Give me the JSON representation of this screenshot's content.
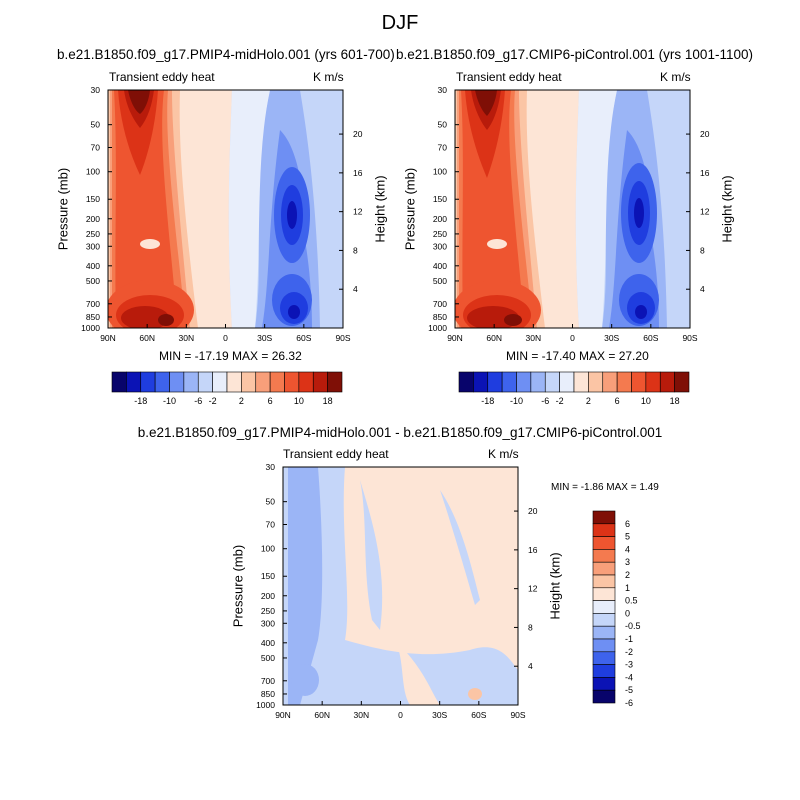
{
  "page": {
    "title": "DJF"
  },
  "colors": {
    "main": [
      "#08046b",
      "#0b13b5",
      "#1f3ddf",
      "#3e63ec",
      "#6e8ff3",
      "#9bb5f6",
      "#c5d6f9",
      "#e8eefb",
      "#fde5d6",
      "#fbc5a5",
      "#f89f7a",
      "#f47a4f",
      "#ee5530",
      "#dc3317",
      "#b81b0b",
      "#7f0f06"
    ],
    "diff": [
      "#08046b",
      "#0b13b5",
      "#1f3ddf",
      "#3e63ec",
      "#6e8ff3",
      "#9bb5f6",
      "#c5d6f9",
      "#e8eefb",
      "#fde5d6",
      "#fbc5a5",
      "#f89f7a",
      "#f47a4f",
      "#ee5530",
      "#dc3317",
      "#7f0f06"
    ]
  },
  "chart_data": [
    {
      "type": "contour",
      "panel": "left",
      "title": "b.e21.B1850.f09_g17.PMIP4-midHolo.001 (yrs 601-700)",
      "left_label": "Transient eddy heat",
      "right_label": "K m/s",
      "ylabel": "Pressure (mb)",
      "y2label": "Height (km)",
      "x_ticks": [
        "90N",
        "60N",
        "30N",
        "0",
        "30S",
        "60S",
        "90S"
      ],
      "y_ticks": [
        "30",
        "50",
        "70",
        "100",
        "150",
        "200",
        "250",
        "300",
        "400",
        "500",
        "700",
        "850",
        "1000"
      ],
      "y2_ticks": [
        "20",
        "16",
        "12",
        "8",
        "4"
      ],
      "stats": "MIN = -17.19   MAX =  26.32",
      "colorbar_labels": [
        "-18",
        "-10",
        "-6",
        "-2",
        "2",
        "6",
        "10",
        "18"
      ]
    },
    {
      "type": "contour",
      "panel": "right",
      "title": "b.e21.B1850.f09_g17.CMIP6-piControl.001 (yrs 1001-1100)",
      "left_label": "Transient eddy heat",
      "right_label": "K m/s",
      "ylabel": "Pressure (mb)",
      "y2label": "Height (km)",
      "x_ticks": [
        "90N",
        "60N",
        "30N",
        "0",
        "30S",
        "60S",
        "90S"
      ],
      "y_ticks": [
        "30",
        "50",
        "70",
        "100",
        "150",
        "200",
        "250",
        "300",
        "400",
        "500",
        "700",
        "850",
        "1000"
      ],
      "y2_ticks": [
        "20",
        "16",
        "12",
        "8",
        "4"
      ],
      "stats": "MIN = -17.40   MAX =  27.20",
      "colorbar_labels": [
        "-18",
        "-10",
        "-6",
        "-2",
        "2",
        "6",
        "10",
        "18"
      ]
    },
    {
      "type": "contour",
      "panel": "diff",
      "title": "b.e21.B1850.f09_g17.PMIP4-midHolo.001 - b.e21.B1850.f09_g17.CMIP6-piControl.001",
      "left_label": "Transient eddy heat",
      "right_label": "K m/s",
      "ylabel": "Pressure (mb)",
      "y2label": "Height (km)",
      "x_ticks": [
        "90N",
        "60N",
        "30N",
        "0",
        "30S",
        "60S",
        "90S"
      ],
      "y_ticks": [
        "30",
        "50",
        "70",
        "100",
        "150",
        "200",
        "250",
        "300",
        "400",
        "500",
        "700",
        "850",
        "1000"
      ],
      "y2_ticks": [
        "20",
        "16",
        "12",
        "8",
        "4"
      ],
      "stats": "MIN =  -1.86   MAX =   1.49",
      "colorbar_labels": [
        "6",
        "5",
        "4",
        "3",
        "2",
        "1",
        "0.5",
        "0",
        "-0.5",
        "-1",
        "-2",
        "-3",
        "-4",
        "-5",
        "-6"
      ]
    }
  ]
}
